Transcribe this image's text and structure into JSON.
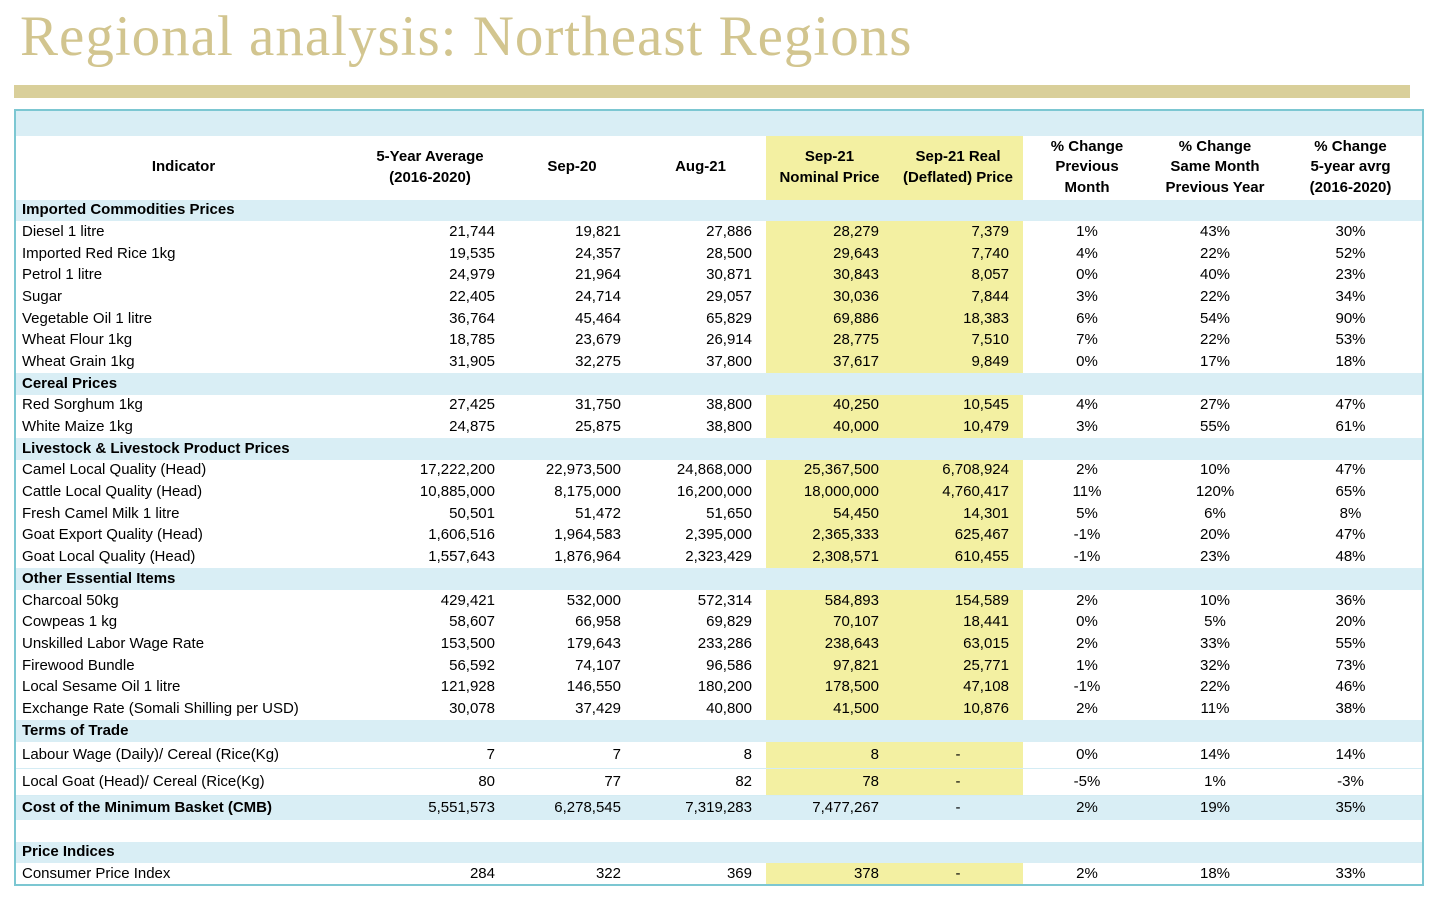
{
  "page": {
    "title": "Regional analysis: Northeast Regions"
  },
  "colors": {
    "title": "#d2c58f",
    "bar": "#d9cf9a",
    "border": "#7cc7d2",
    "blue": "#d9eef5",
    "yellow": "#f3f0a2",
    "text": "#000000"
  },
  "table": {
    "columns": [
      "Indicator",
      "5-Year Average\n(2016-2020)",
      "Sep-20",
      "Aug-21",
      "Sep-21\nNominal Price",
      "Sep-21 Real\n(Deflated) Price",
      "% Change\nPrevious\nMonth",
      "% Change\nSame Month\nPrevious Year",
      "% Change\n5-year avrg\n(2016-2020)"
    ],
    "sections": [
      {
        "header": "Imported Commodities Prices",
        "rows": [
          {
            "label": "Diesel 1 litre",
            "values": [
              "21,744",
              "19,821",
              "27,886",
              "28,279",
              "7,379",
              "1%",
              "43%",
              "30%"
            ]
          },
          {
            "label": "Imported Red Rice 1kg",
            "values": [
              "19,535",
              "24,357",
              "28,500",
              "29,643",
              "7,740",
              "4%",
              "22%",
              "52%"
            ]
          },
          {
            "label": "Petrol 1 litre",
            "values": [
              "24,979",
              "21,964",
              "30,871",
              "30,843",
              "8,057",
              "0%",
              "40%",
              "23%"
            ]
          },
          {
            "label": "Sugar",
            "values": [
              "22,405",
              "24,714",
              "29,057",
              "30,036",
              "7,844",
              "3%",
              "22%",
              "34%"
            ]
          },
          {
            "label": "Vegetable Oil 1 litre",
            "values": [
              "36,764",
              "45,464",
              "65,829",
              "69,886",
              "18,383",
              "6%",
              "54%",
              "90%"
            ]
          },
          {
            "label": "Wheat Flour 1kg",
            "values": [
              "18,785",
              "23,679",
              "26,914",
              "28,775",
              "7,510",
              "7%",
              "22%",
              "53%"
            ]
          },
          {
            "label": "Wheat Grain 1kg",
            "values": [
              "31,905",
              "32,275",
              "37,800",
              "37,617",
              "9,849",
              "0%",
              "17%",
              "18%"
            ]
          }
        ]
      },
      {
        "header": "Cereal Prices",
        "rows": [
          {
            "label": "Red Sorghum 1kg",
            "values": [
              "27,425",
              "31,750",
              "38,800",
              "40,250",
              "10,545",
              "4%",
              "27%",
              "47%"
            ]
          },
          {
            "label": "White Maize 1kg",
            "values": [
              "24,875",
              "25,875",
              "38,800",
              "40,000",
              "10,479",
              "3%",
              "55%",
              "61%"
            ]
          }
        ]
      },
      {
        "header": "Livestock & Livestock Product Prices",
        "rows": [
          {
            "label": "Camel Local Quality (Head)",
            "values": [
              "17,222,200",
              "22,973,500",
              "24,868,000",
              "25,367,500",
              "6,708,924",
              "2%",
              "10%",
              "47%"
            ]
          },
          {
            "label": "Cattle Local Quality (Head)",
            "values": [
              "10,885,000",
              "8,175,000",
              "16,200,000",
              "18,000,000",
              "4,760,417",
              "11%",
              "120%",
              "65%"
            ]
          },
          {
            "label": "Fresh Camel Milk 1 litre",
            "values": [
              "50,501",
              "51,472",
              "51,650",
              "54,450",
              "14,301",
              "5%",
              "6%",
              "8%"
            ]
          },
          {
            "label": "Goat Export Quality (Head)",
            "values": [
              "1,606,516",
              "1,964,583",
              "2,395,000",
              "2,365,333",
              "625,467",
              "-1%",
              "20%",
              "47%"
            ]
          },
          {
            "label": "Goat Local Quality (Head)",
            "values": [
              "1,557,643",
              "1,876,964",
              "2,323,429",
              "2,308,571",
              "610,455",
              "-1%",
              "23%",
              "48%"
            ]
          }
        ]
      },
      {
        "header": "Other Essential Items",
        "rows": [
          {
            "label": "Charcoal 50kg",
            "values": [
              "429,421",
              "532,000",
              "572,314",
              "584,893",
              "154,589",
              "2%",
              "10%",
              "36%"
            ]
          },
          {
            "label": "Cowpeas 1 kg",
            "values": [
              "58,607",
              "66,958",
              "69,829",
              "70,107",
              "18,441",
              "0%",
              "5%",
              "20%"
            ]
          },
          {
            "label": "Unskilled Labor Wage Rate",
            "values": [
              "153,500",
              "179,643",
              "233,286",
              "238,643",
              "63,015",
              "2%",
              "33%",
              "55%"
            ]
          },
          {
            "label": "Firewood Bundle",
            "values": [
              "56,592",
              "74,107",
              "96,586",
              "97,821",
              "25,771",
              "1%",
              "32%",
              "73%"
            ]
          },
          {
            "label": "Local Sesame Oil 1 litre",
            "values": [
              "121,928",
              "146,550",
              "180,200",
              "178,500",
              "47,108",
              "-1%",
              "22%",
              "46%"
            ]
          },
          {
            "label": "Exchange Rate (Somali Shilling per USD)",
            "values": [
              "30,078",
              "37,429",
              "40,800",
              "41,500",
              "10,876",
              "2%",
              "11%",
              "38%"
            ]
          }
        ]
      },
      {
        "header": "Terms of Trade",
        "tall_rows": true,
        "rows": [
          {
            "label": "Labour Wage (Daily)/ Cereal (Rice(Kg)",
            "values": [
              "7",
              "7",
              "8",
              "8",
              "-",
              "0%",
              "14%",
              "14%"
            ]
          },
          {
            "label": "Local Goat (Head)/ Cereal (Rice(Kg)",
            "values": [
              "80",
              "77",
              "82",
              "78",
              "-",
              "-5%",
              "1%",
              "-3%"
            ]
          }
        ]
      },
      {
        "header": null,
        "rows": [
          {
            "label": "Cost of the Minimum Basket (CMB)",
            "type": "summary",
            "values": [
              "5,551,573",
              "6,278,545",
              "7,319,283",
              "7,477,267",
              "-",
              "2%",
              "19%",
              "35%"
            ]
          }
        ]
      },
      {
        "header": "Price Indices",
        "gap_before": true,
        "rows": [
          {
            "label": "Consumer Price Index",
            "values": [
              "284",
              "322",
              "369",
              "378",
              "-",
              "2%",
              "18%",
              "33%"
            ]
          }
        ]
      }
    ]
  }
}
